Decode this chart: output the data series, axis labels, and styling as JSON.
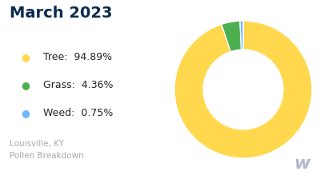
{
  "title": "March 2023",
  "title_color": "#0d2b4e",
  "subtitle": "Louisville, KY\nPollen Breakdown",
  "subtitle_color": "#aaaaaa",
  "categories": [
    "Tree",
    "Grass",
    "Weed"
  ],
  "values": [
    94.89,
    4.36,
    0.75
  ],
  "colors": [
    "#FFD84D",
    "#4CAF50",
    "#6EB5FF"
  ],
  "background_color": "#ffffff",
  "donut_width": 0.42,
  "startangle": 90,
  "legend_labels": [
    "Tree:  94.89%",
    "Grass:  4.36%",
    "Weed:  0.75%"
  ]
}
